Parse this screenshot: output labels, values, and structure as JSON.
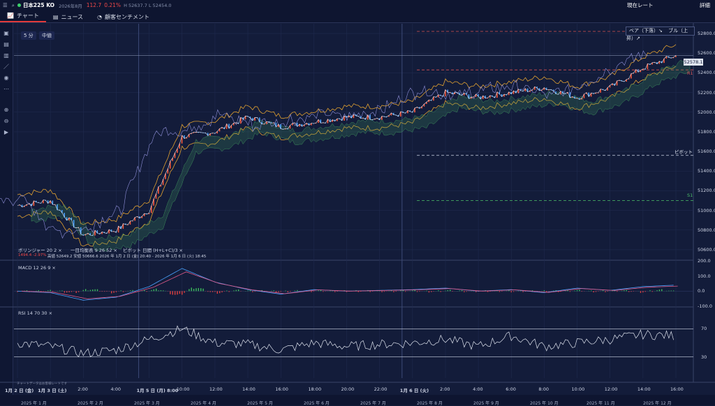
{
  "header": {
    "symbol": "日本225 KO",
    "date": "2026年8月",
    "change": "112.7",
    "change_pct": "0.21%",
    "hl": "H 52637.7 L 52454.0",
    "current_rate": "現在レート",
    "detail": "詳細"
  },
  "tabs": [
    "チャート",
    "ニュース",
    "顧客センチメント"
  ],
  "controls": {
    "timeframe": "5 分",
    "mode": "中値",
    "bear": "ベア（下落）↘",
    "bull": "ブル（上昇）↗"
  },
  "indicators": {
    "legend": [
      "ボリンジャー 20 2 ×",
      "一目均衡表 9 26 52 ×",
      "ピボット 日間 (H+L+C)/3 ×"
    ],
    "stats": "1494.4 -2.97%",
    "stats2": "高値 52649.2 安値 50666.6 2026 年 1月 2 日 (金) 20:40 - 2026 年 1月 6 日 (火) 18:45",
    "macd": "MACD 12 26 9 ×",
    "rsi": "RSI 14 70 30 ×",
    "note": "チャートデータはお客様レートです"
  },
  "price_axis": [
    "52800.0",
    "52600.0",
    "52400.0",
    "52200.0",
    "52000.0",
    "51800.0",
    "51600.0",
    "51400.0",
    "51200.0",
    "51000.0",
    "50800.0",
    "50600.0"
  ],
  "current_price": "52578.1",
  "pivot_labels": {
    "r1": "R1",
    "pivot": "ピボット",
    "s1": "S1"
  },
  "macd_axis": [
    "200.0",
    "100.0",
    "0.0",
    "-100.0"
  ],
  "rsi_axis": [
    "70",
    "30"
  ],
  "time_axis": [
    "1月 2 日 (金)",
    "1月 3 日 (土)",
    "2:00",
    "4:00",
    "1月 5 日 (月) 8:00",
    "10:00",
    "12:00",
    "14:00",
    "16:00",
    "18:00",
    "20:00",
    "22:00",
    "1月 6 日 (火)",
    "2:00",
    "4:00",
    "6:00",
    "8:00",
    "10:00",
    "12:00",
    "14:00",
    "16:00"
  ],
  "month_axis": [
    "2025 年 1 月",
    "2025 年 2 月",
    "2025 年 3 月",
    "2025 年 4 月",
    "2025 年 5 月",
    "2025 年 6 月",
    "2025 年 7 月",
    "2025 年 8 月",
    "2025 年 9 月",
    "2025 年 10 月",
    "2025 年 11 月",
    "2025 年 12 月"
  ],
  "colors": {
    "up": "#ff5a3c",
    "down": "#4aa3ff",
    "bg": "#131c3a"
  },
  "chart_data": {
    "type": "line",
    "ylim": [
      50500,
      52900
    ],
    "x": [
      "1月 2 日 (金)",
      "1月 3 日 (土)",
      "2:00",
      "4:00",
      "1月 5 日 (月) 8:00",
      "10:00",
      "12:00",
      "14:00",
      "16:00",
      "18:00",
      "20:00",
      "22:00",
      "1月 6 日 (火)",
      "2:00",
      "4:00",
      "6:00",
      "8:00",
      "10:00",
      "12:00",
      "14:00",
      "16:00"
    ],
    "series": [
      {
        "values": [
          51050,
          51100,
          50750,
          50800,
          51000,
          51750,
          51800,
          51950,
          51850,
          51900,
          51950,
          51950,
          52000,
          52200,
          52150,
          52200,
          52250,
          52150,
          52250,
          52450,
          52578
        ]
      }
    ],
    "pivot": {
      "r1": 52430,
      "pivot": 51560,
      "s1": 51100
    },
    "macd": [
      0,
      -10,
      -60,
      -40,
      30,
      150,
      60,
      10,
      -20,
      10,
      0,
      5,
      10,
      20,
      0,
      10,
      -10,
      20,
      5,
      30,
      40
    ],
    "rsi": [
      50,
      45,
      35,
      40,
      55,
      70,
      50,
      48,
      40,
      50,
      45,
      48,
      50,
      55,
      45,
      60,
      45,
      50,
      55,
      62,
      60
    ]
  }
}
